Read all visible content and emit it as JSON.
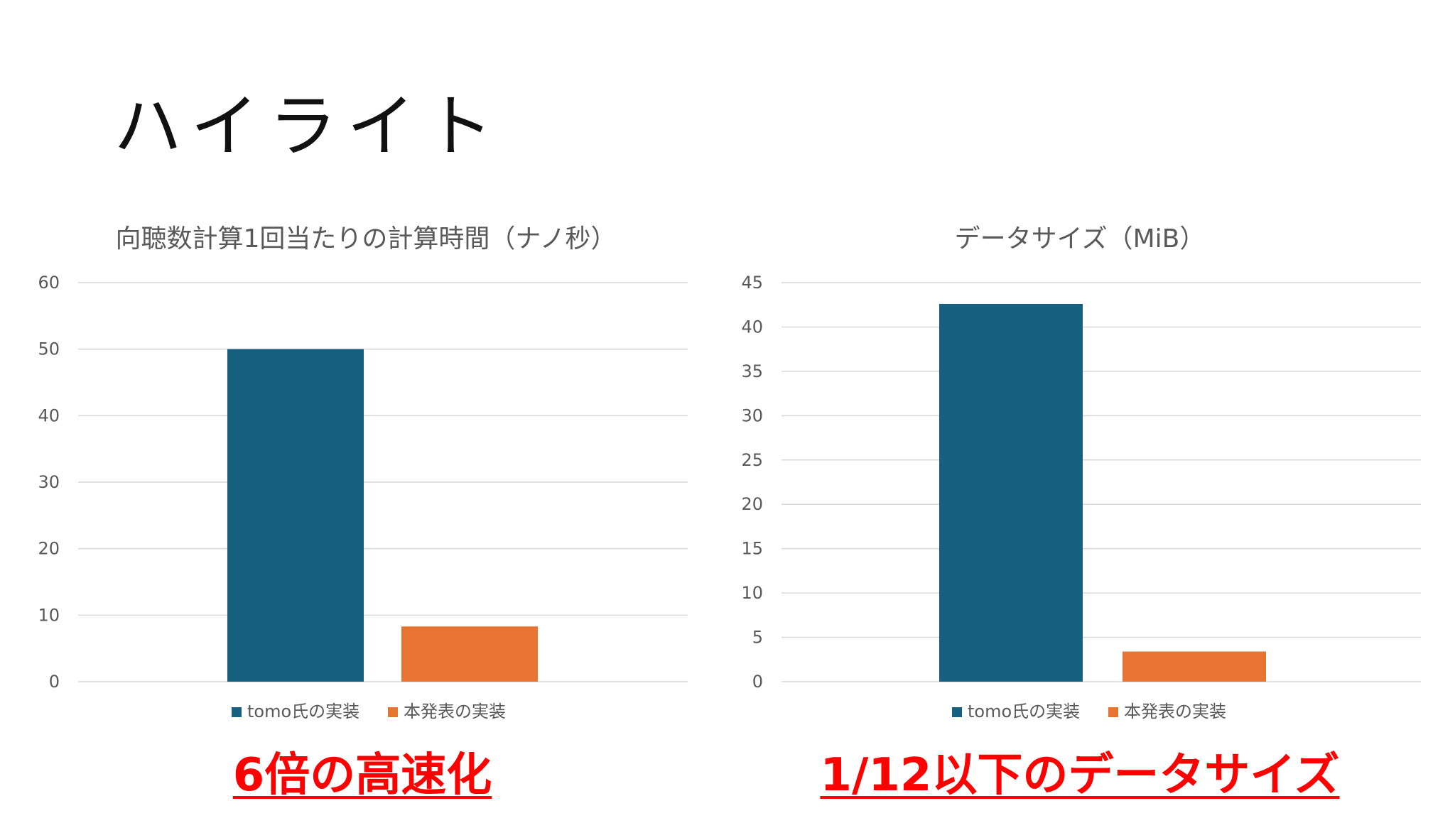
{
  "slide": {
    "title": "ハイライト"
  },
  "highlights": {
    "left": "6倍の高速化",
    "right": "1/12以下のデータサイズ"
  },
  "colors": {
    "series_1": "#17607f",
    "series_2": "#e87432",
    "grid": "#d9d9d9",
    "axis_text": "#595959",
    "highlight": "#ff0000"
  },
  "chart_data": [
    {
      "type": "bar",
      "title": "向聴数計算1回当たりの計算時間（ナノ秒）",
      "categories": [
        ""
      ],
      "series": [
        {
          "name": "tomo氏の実装",
          "values": [
            50
          ]
        },
        {
          "name": "本発表の実装",
          "values": [
            8.3
          ]
        }
      ],
      "ylim": [
        0,
        60
      ],
      "yticks": [
        0,
        10,
        20,
        30,
        40,
        50,
        60
      ],
      "grid": true,
      "legend": "bottom"
    },
    {
      "type": "bar",
      "title": "データサイズ（MiB）",
      "categories": [
        ""
      ],
      "series": [
        {
          "name": "tomo氏の実装",
          "values": [
            42.6
          ]
        },
        {
          "name": "本発表の実装",
          "values": [
            3.4
          ]
        }
      ],
      "ylim": [
        0,
        45
      ],
      "yticks": [
        0,
        5,
        10,
        15,
        20,
        25,
        30,
        35,
        40,
        45
      ],
      "grid": true,
      "legend": "bottom"
    }
  ]
}
